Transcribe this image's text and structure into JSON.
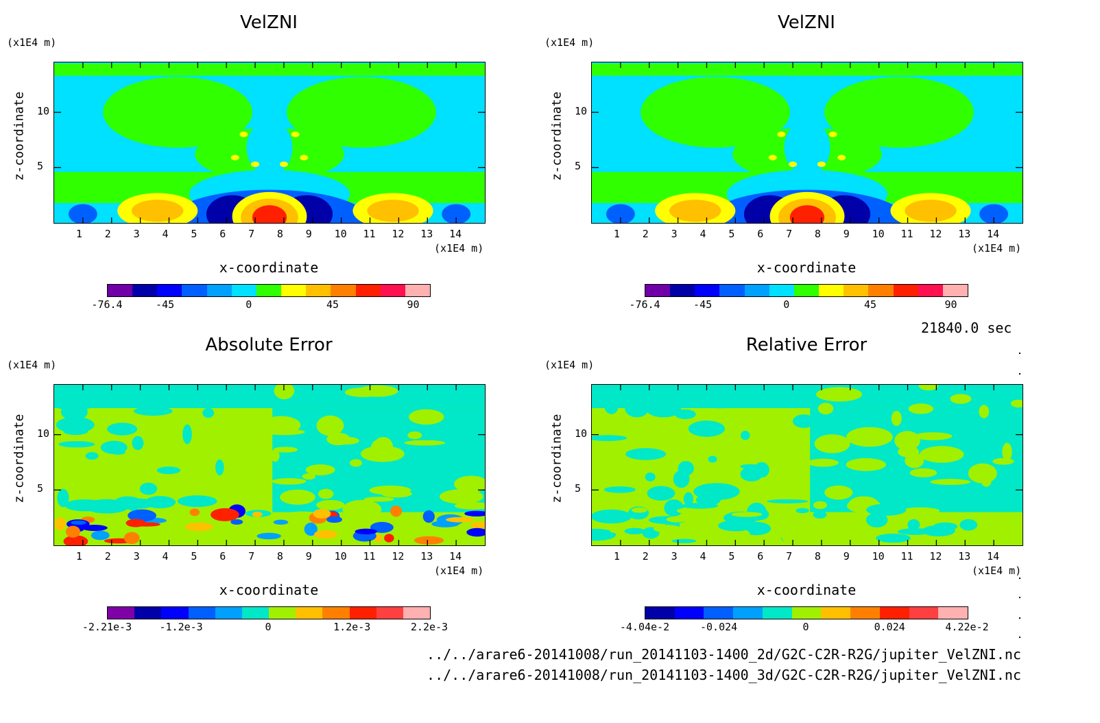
{
  "chart_data": [
    {
      "type": "heatmap",
      "title": "VelZNI",
      "xlabel": "x-coordinate",
      "ylabel": "z-coordinate",
      "x_unit": "(x1E4 m)",
      "y_unit": "(x1E4 m)",
      "xticks": [
        "1",
        "2",
        "3",
        "4",
        "5",
        "6",
        "7",
        "8",
        "9",
        "10",
        "11",
        "12",
        "13",
        "14"
      ],
      "yticks": [
        "5",
        "10"
      ],
      "xlim": [
        0,
        15
      ],
      "ylim": [
        0,
        14.5
      ],
      "colorbar": {
        "ticks": [
          "-76.4",
          "-45",
          "0",
          "45",
          "90"
        ],
        "colors": [
          "#6f00a8",
          "#0000a8",
          "#0000ff",
          "#0060ff",
          "#00a0ff",
          "#00e0ff",
          "#30ff00",
          "#ffff00",
          "#ffc000",
          "#ff8000",
          "#ff2000",
          "#ff1050",
          "#ffb0b0"
        ]
      },
      "features": [
        {
          "x": 7.5,
          "z": 0.6,
          "value": 90
        },
        {
          "x": 3.6,
          "z": 1.2,
          "value": 45
        },
        {
          "x": 11.8,
          "z": 1.2,
          "value": 45
        },
        {
          "x": 6.3,
          "z": 1.0,
          "value": -76.4
        },
        {
          "x": 8.7,
          "z": 1.0,
          "value": -76.4
        }
      ]
    },
    {
      "type": "heatmap",
      "title": "VelZNI",
      "xlabel": "x-coordinate",
      "ylabel": "z-coordinate",
      "x_unit": "(x1E4 m)",
      "y_unit": "(x1E4 m)",
      "xticks": [
        "1",
        "2",
        "3",
        "4",
        "5",
        "6",
        "7",
        "8",
        "9",
        "10",
        "11",
        "12",
        "13",
        "14"
      ],
      "yticks": [
        "5",
        "10"
      ],
      "xlim": [
        0,
        15
      ],
      "ylim": [
        0,
        14.5
      ],
      "colorbar": {
        "ticks": [
          "-76.4",
          "-45",
          "0",
          "45",
          "90"
        ],
        "colors": [
          "#6f00a8",
          "#0000a8",
          "#0000ff",
          "#0060ff",
          "#00a0ff",
          "#00e0ff",
          "#30ff00",
          "#ffff00",
          "#ffc000",
          "#ff8000",
          "#ff2000",
          "#ff1050",
          "#ffb0b0"
        ]
      }
    },
    {
      "type": "heatmap",
      "title": "Absolute Error",
      "xlabel": "x-coordinate",
      "ylabel": "z-coordinate",
      "x_unit": "(x1E4 m)",
      "y_unit": "(x1E4 m)",
      "xticks": [
        "1",
        "2",
        "3",
        "4",
        "5",
        "6",
        "7",
        "8",
        "9",
        "10",
        "11",
        "12",
        "13",
        "14"
      ],
      "yticks": [
        "5",
        "10"
      ],
      "xlim": [
        0,
        15
      ],
      "ylim": [
        0,
        14.5
      ],
      "colorbar": {
        "ticks": [
          "-2.21e-3",
          "-1.2e-3",
          "0",
          "1.2e-3",
          "2.2e-3"
        ],
        "colors": [
          "#8000a8",
          "#0000a8",
          "#0000ff",
          "#0060ff",
          "#00a0ff",
          "#00e8c8",
          "#a0f000",
          "#ffc000",
          "#ff8000",
          "#ff2000",
          "#ff4040",
          "#ffb0b0"
        ]
      }
    },
    {
      "type": "heatmap",
      "title": "Relative Error",
      "xlabel": "x-coordinate",
      "ylabel": "z-coordinate",
      "x_unit": "(x1E4 m)",
      "y_unit": "(x1E4 m)",
      "xticks": [
        "1",
        "2",
        "3",
        "4",
        "5",
        "6",
        "7",
        "8",
        "9",
        "10",
        "11",
        "12",
        "13",
        "14"
      ],
      "yticks": [
        "5",
        "10"
      ],
      "xlim": [
        0,
        15
      ],
      "ylim": [
        0,
        14.5
      ],
      "colorbar": {
        "ticks": [
          "-4.04e-2",
          "-0.024",
          "0",
          "0.024",
          "4.22e-2"
        ],
        "colors": [
          "#0000a8",
          "#0000ff",
          "#0060ff",
          "#00a0ff",
          "#00e8c8",
          "#a0f000",
          "#ffc000",
          "#ff8000",
          "#ff2000",
          "#ff4040",
          "#ffb0b0"
        ]
      }
    }
  ],
  "footer": {
    "time": "21840.0 sec",
    "file1": "../../arare6-20141008/run_20141103-1400_2d/G2C-C2R-R2G/jupiter_VelZNI.nc",
    "file2": "../../arare6-20141008/run_20141103-1400_3d/G2C-C2R-R2G/jupiter_VelZNI.nc"
  }
}
